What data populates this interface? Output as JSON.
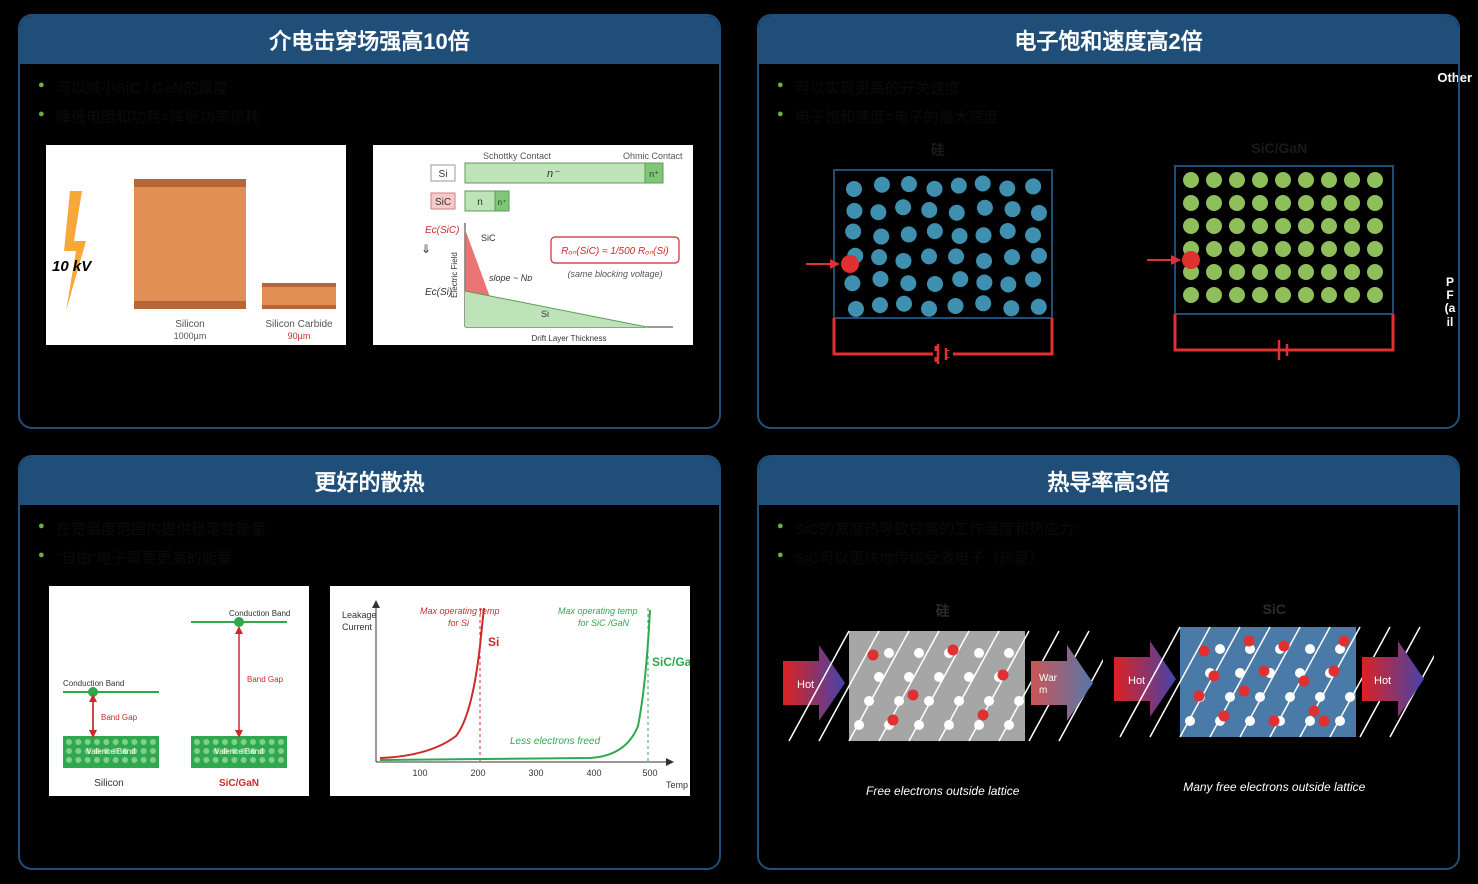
{
  "corner": "Other",
  "side_tag": "PF(ail",
  "panels": {
    "p1": {
      "title": "介电击穿场强高10倍",
      "bullets": [
        "可以减小SiC / GaN的厚度",
        "降低电阻和功耗=降低功率损耗"
      ],
      "kv_label": "10 kV",
      "mat1": "Silicon",
      "mat1_sub": "1000µm",
      "mat2": "Silicon Carbide",
      "mat2_sub": "90µm",
      "si_box": "Si",
      "sic_box": "SiC",
      "schottky": "Schottky Contact",
      "ohmic": "Ohmic Contact",
      "n_region": "n⁻",
      "np_region": "n⁺",
      "ec_sic": "Eᴄ(SiC)",
      "ec_si": "Eᴄ(Si)",
      "slope": "slope ~ Nᴅ",
      "formula": "Rₒₙ(SiC) ≈ 1/500 Rₒₙ(Si)",
      "same_v": "(same blocking voltage)",
      "xaxis1": "Drift Layer Thickness",
      "yaxis1": "Electric Field",
      "sic_mark": "SiC",
      "si_mark": "Si"
    },
    "p2": {
      "title": "电子饱和速度高2倍",
      "bullets": [
        "可以实现更高的开关速度",
        "电子饱和速度=电子的最大速度"
      ],
      "left_label": "硅",
      "right_label": "SiC/GaN",
      "dot_color_si": "#3e8fb0",
      "dot_color_sic": "#8fbf5a",
      "box_border": "#1f4e79",
      "circuit_color": "#e03030",
      "electron_color": "#e03030"
    },
    "p3": {
      "title": "更好的散热",
      "bullets": [
        "在宽温度范围内提供稳定性能量",
        "\"自由\"电子需要更高的能量"
      ],
      "silicon_lbl": "Silicon",
      "sicgan_lbl": "SiC/GaN",
      "cb": "Conduction Band",
      "vb": "Valence Band",
      "bandgap": "Band Gap",
      "chart_y": "Leakage Current",
      "chart_x_ticks": [
        "100",
        "200",
        "300",
        "400",
        "500"
      ],
      "chart_x_label": "Temp °C",
      "max_si": "Max operating temp for Si",
      "max_sic": "Max operating temp for SiC /GaN",
      "si_lbl": "Si",
      "sic_lbl": "SiC/GaN",
      "less_e": "Less electrons freed",
      "si_color": "#cc2b2b",
      "sic_color": "#2fa84f"
    },
    "p4": {
      "title": "热导率高3倍",
      "bullets": [
        "SiC的宽度热导致较高的工作温度和热应力",
        "SiC可以更快地传输受激电子（热量）"
      ],
      "left_label": "硅",
      "right_label": "SiC",
      "hot": "Hot",
      "warm": "Warm",
      "cap_left": "Free electrons outside lattice",
      "cap_right": "Many free electrons outside lattice",
      "bg_si": "#a6a6a6",
      "bg_sic": "#4a7aa8",
      "lattice_color": "#ffffff",
      "free_color": "#e03030"
    }
  }
}
